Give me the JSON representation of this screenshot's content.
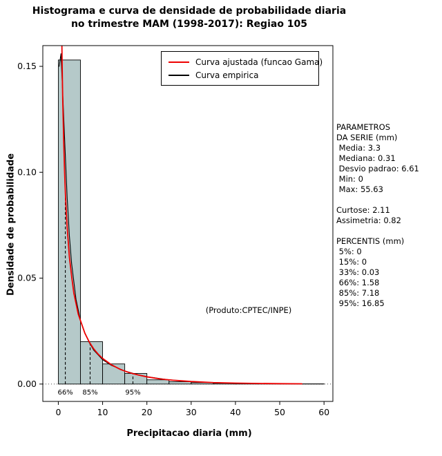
{
  "side_panel": {
    "lines": [
      "PARAMETROS",
      "DA SERIE (mm)",
      " Media: 3.3",
      " Mediana: 0.31",
      " Desvio padrao: 6.61",
      " Min: 0",
      " Max: 55.63",
      "",
      "Curtose: 2.11",
      "Assimetria: 0.82",
      "",
      "PERCENTIS (mm)",
      " 5%: 0",
      " 15%: 0",
      " 33%: 0.03",
      " 66%: 1.58",
      " 85%: 7.18",
      " 95%: 16.85"
    ]
  },
  "chart_data": {
    "type": "bar",
    "title": "Histograma e curva de densidade de probabilidade diaria no trimestre MAM (1998-2017): Regiao 105",
    "title_lines": [
      "Histograma e curva de densidade de probabilidade diaria",
      "no trimestre MAM (1998-2017): Regiao 105"
    ],
    "xlabel": "Precipitacao diaria (mm)",
    "ylabel": "Densidade de probabilidade",
    "xlim": [
      -3.5,
      62
    ],
    "ylim": [
      -0.0082,
      0.1598
    ],
    "x_ticks": [
      0,
      10,
      20,
      30,
      40,
      50,
      60
    ],
    "y_ticks": [
      0,
      0.05,
      0.1,
      0.15
    ],
    "grid": "dotted-zero-line-only",
    "legend_position": "top-center-inside",
    "bin_width": 5,
    "bins": {
      "start": [
        0,
        5,
        10,
        15,
        20,
        25,
        30,
        35,
        40,
        45,
        50,
        55
      ],
      "density": [
        0.153,
        0.02,
        0.0095,
        0.005,
        0.002,
        0.0011,
        0.0007,
        0.0004,
        0.00025,
        0.0002,
        0.00015,
        0.0001
      ]
    },
    "series": [
      {
        "name": "Curva ajustada (funcao Gama)",
        "color": "#ee0000",
        "points": [
          [
            0.75,
            0.17
          ],
          [
            0.8,
            0.161
          ],
          [
            0.9,
            0.146
          ],
          [
            1.0,
            0.134
          ],
          [
            1.2,
            0.116
          ],
          [
            1.4,
            0.101
          ],
          [
            1.6,
            0.09
          ],
          [
            1.8,
            0.081
          ],
          [
            2.0,
            0.074
          ],
          [
            2.5,
            0.06
          ],
          [
            3.0,
            0.051
          ],
          [
            3.5,
            0.043
          ],
          [
            4.0,
            0.038
          ],
          [
            4.5,
            0.033
          ],
          [
            5.0,
            0.03
          ],
          [
            6.0,
            0.024
          ],
          [
            7.0,
            0.0198
          ],
          [
            8.0,
            0.0166
          ],
          [
            9.0,
            0.0141
          ],
          [
            10,
            0.0121
          ],
          [
            12,
            0.0091
          ],
          [
            14,
            0.0069
          ],
          [
            16,
            0.0054
          ],
          [
            18,
            0.0043
          ],
          [
            20,
            0.0034
          ],
          [
            23,
            0.0024
          ],
          [
            26,
            0.0018
          ],
          [
            30,
            0.0012
          ],
          [
            35,
            0.0007
          ],
          [
            40,
            0.00044
          ],
          [
            45,
            0.00028
          ],
          [
            50,
            0.00018
          ],
          [
            55,
            0.00011
          ]
        ]
      },
      {
        "name": "Curva empirica",
        "color": "#000000",
        "points": [
          [
            0.2,
            0.15
          ],
          [
            0.6,
            0.156
          ],
          [
            1.0,
            0.137
          ],
          [
            1.5,
            0.112
          ],
          [
            2,
            0.088
          ],
          [
            2.5,
            0.07
          ],
          [
            3,
            0.057
          ],
          [
            4,
            0.04
          ],
          [
            5,
            0.03
          ],
          [
            6,
            0.024
          ],
          [
            7,
            0.0195
          ],
          [
            8,
            0.016
          ],
          [
            10,
            0.0115
          ],
          [
            12,
            0.0088
          ],
          [
            15,
            0.0062
          ],
          [
            18,
            0.0044
          ],
          [
            20,
            0.0035
          ],
          [
            25,
            0.002
          ],
          [
            30,
            0.0011
          ],
          [
            35,
            0.0007
          ],
          [
            40,
            0.0004
          ],
          [
            45,
            0.00025
          ],
          [
            50,
            0.00015
          ],
          [
            55,
            0.0001
          ]
        ]
      }
    ],
    "percentile_lines": [
      {
        "label": "66%",
        "x": 1.58,
        "y_top": 0.0912
      },
      {
        "label": "85%",
        "x": 7.18,
        "y_top": 0.0192
      },
      {
        "label": "95%",
        "x": 16.85,
        "y_top": 0.0049
      }
    ],
    "annotation": {
      "text": "(Produto:CPTEC/INPE)",
      "x": 43,
      "y": 0.035
    },
    "colors": {
      "bar_fill": "#b5c9c9",
      "bar_stroke": "#000000",
      "gamma_curve": "#ee0000",
      "empirical_curve": "#000000",
      "axis": "#000000"
    }
  }
}
